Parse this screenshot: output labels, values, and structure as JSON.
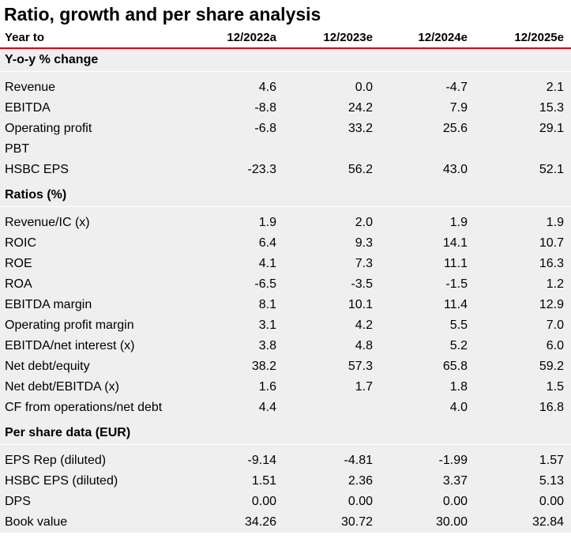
{
  "title": "Ratio, growth and per share analysis",
  "header": {
    "label": "Year to",
    "years": [
      "12/2022a",
      "12/2023e",
      "12/2024e",
      "12/2025e"
    ]
  },
  "sections": [
    {
      "title": "Y-o-y % change",
      "rows": [
        {
          "label": "Revenue",
          "values": [
            "4.6",
            "0.0",
            "-4.7",
            "2.1"
          ]
        },
        {
          "label": "EBITDA",
          "values": [
            "-8.8",
            "24.2",
            "7.9",
            "15.3"
          ]
        },
        {
          "label": "Operating profit",
          "values": [
            "-6.8",
            "33.2",
            "25.6",
            "29.1"
          ]
        },
        {
          "label": "PBT",
          "values": [
            "",
            "",
            "",
            ""
          ]
        },
        {
          "label": "HSBC EPS",
          "values": [
            "-23.3",
            "56.2",
            "43.0",
            "52.1"
          ]
        }
      ]
    },
    {
      "title": "Ratios (%)",
      "rows": [
        {
          "label": "Revenue/IC (x)",
          "values": [
            "1.9",
            "2.0",
            "1.9",
            "1.9"
          ]
        },
        {
          "label": "ROIC",
          "values": [
            "6.4",
            "9.3",
            "14.1",
            "10.7"
          ]
        },
        {
          "label": "ROE",
          "values": [
            "4.1",
            "7.3",
            "11.1",
            "16.3"
          ]
        },
        {
          "label": "ROA",
          "values": [
            "-6.5",
            "-3.5",
            "-1.5",
            "1.2"
          ]
        },
        {
          "label": "EBITDA margin",
          "values": [
            "8.1",
            "10.1",
            "11.4",
            "12.9"
          ]
        },
        {
          "label": "Operating profit margin",
          "values": [
            "3.1",
            "4.2",
            "5.5",
            "7.0"
          ]
        },
        {
          "label": "EBITDA/net interest (x)",
          "values": [
            "3.8",
            "4.8",
            "5.2",
            "6.0"
          ]
        },
        {
          "label": "Net debt/equity",
          "values": [
            "38.2",
            "57.3",
            "65.8",
            "59.2"
          ]
        },
        {
          "label": "Net debt/EBITDA (x)",
          "values": [
            "1.6",
            "1.7",
            "1.8",
            "1.5"
          ]
        },
        {
          "label": "CF from operations/net debt",
          "values": [
            "4.4",
            "",
            "4.0",
            "16.8"
          ]
        }
      ]
    },
    {
      "title": "Per share data  (EUR)",
      "rows": [
        {
          "label": "EPS Rep (diluted)",
          "values": [
            "-9.14",
            "-4.81",
            "-1.99",
            "1.57"
          ]
        },
        {
          "label": "HSBC EPS (diluted)",
          "values": [
            "1.51",
            "2.36",
            "3.37",
            "5.13"
          ]
        },
        {
          "label": "DPS",
          "values": [
            "0.00",
            "0.00",
            "0.00",
            "0.00"
          ]
        },
        {
          "label": "Book value",
          "values": [
            "34.26",
            "30.72",
            "30.00",
            "32.84"
          ]
        }
      ]
    }
  ]
}
